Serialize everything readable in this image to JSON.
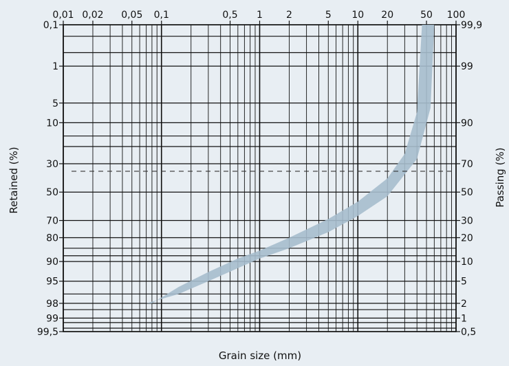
{
  "chart_data": {
    "type": "area",
    "title": "",
    "xlabel": "Grain size (mm)",
    "ylabel_left": "Retained (%)",
    "ylabel_right": "Passing (%)",
    "x_scale": "log",
    "y_scale": "probability",
    "xlim": [
      0.01,
      100
    ],
    "ylim_passing": [
      0.5,
      99.9
    ],
    "grid": true,
    "x_tick_labels": [
      {
        "value": 0.01,
        "label": "0,01"
      },
      {
        "value": 0.02,
        "label": "0,02"
      },
      {
        "value": 0.05,
        "label": "0,05"
      },
      {
        "value": 0.1,
        "label": "0,1"
      },
      {
        "value": 0.5,
        "label": "0,5"
      },
      {
        "value": 1,
        "label": "1"
      },
      {
        "value": 2,
        "label": "2"
      },
      {
        "value": 5,
        "label": "5"
      },
      {
        "value": 10,
        "label": "10"
      },
      {
        "value": 20,
        "label": "20"
      },
      {
        "value": 50,
        "label": "50"
      },
      {
        "value": 100,
        "label": "100"
      }
    ],
    "left_tick_labels": [
      {
        "value": 99.9,
        "label": "0,1"
      },
      {
        "value": 99,
        "label": "1"
      },
      {
        "value": 95,
        "label": "5"
      },
      {
        "value": 90,
        "label": "10"
      },
      {
        "value": 70,
        "label": "30"
      },
      {
        "value": 50,
        "label": "50"
      },
      {
        "value": 30,
        "label": "70"
      },
      {
        "value": 20,
        "label": "80"
      },
      {
        "value": 10,
        "label": "90"
      },
      {
        "value": 5,
        "label": "95"
      },
      {
        "value": 2,
        "label": "98"
      },
      {
        "value": 1,
        "label": "99"
      },
      {
        "value": 0.5,
        "label": "99,5"
      }
    ],
    "right_tick_labels": [
      {
        "value": 99.9,
        "label": "99,9"
      },
      {
        "value": 99,
        "label": "99"
      },
      {
        "value": 90,
        "label": "90"
      },
      {
        "value": 70,
        "label": "70"
      },
      {
        "value": 50,
        "label": "50"
      },
      {
        "value": 30,
        "label": "30"
      },
      {
        "value": 20,
        "label": "20"
      },
      {
        "value": 10,
        "label": "10"
      },
      {
        "value": 5,
        "label": "5"
      },
      {
        "value": 2,
        "label": "2"
      },
      {
        "value": 1,
        "label": "1"
      },
      {
        "value": 0.5,
        "label": "0,5"
      }
    ],
    "minor_y_gridlines": [
      99.5,
      99.8,
      85,
      80,
      15,
      12,
      3,
      1.5,
      0.8,
      0.6
    ],
    "reference_line": {
      "passing": 65,
      "style": "dashed"
    },
    "band": {
      "color": "#a6bccd",
      "upper": [
        {
          "x": 0.08,
          "y": 2
        },
        {
          "x": 0.15,
          "y": 4
        },
        {
          "x": 0.3,
          "y": 7
        },
        {
          "x": 0.6,
          "y": 11
        },
        {
          "x": 1,
          "y": 14
        },
        {
          "x": 2,
          "y": 20
        },
        {
          "x": 5,
          "y": 31
        },
        {
          "x": 10,
          "y": 43
        },
        {
          "x": 20,
          "y": 60
        },
        {
          "x": 30,
          "y": 76
        },
        {
          "x": 40,
          "y": 93
        },
        {
          "x": 45,
          "y": 99.9
        }
      ],
      "lower": [
        {
          "x": 0.07,
          "y": 2
        },
        {
          "x": 0.15,
          "y": 3
        },
        {
          "x": 0.3,
          "y": 5
        },
        {
          "x": 0.6,
          "y": 8
        },
        {
          "x": 1,
          "y": 11
        },
        {
          "x": 2,
          "y": 15
        },
        {
          "x": 5,
          "y": 23
        },
        {
          "x": 10,
          "y": 33
        },
        {
          "x": 20,
          "y": 47
        },
        {
          "x": 40,
          "y": 73
        },
        {
          "x": 55,
          "y": 94
        },
        {
          "x": 60,
          "y": 99.9
        }
      ]
    },
    "colors": {
      "background": "#e8eef3",
      "grid": "#111111",
      "band": "#a6bccd"
    }
  }
}
